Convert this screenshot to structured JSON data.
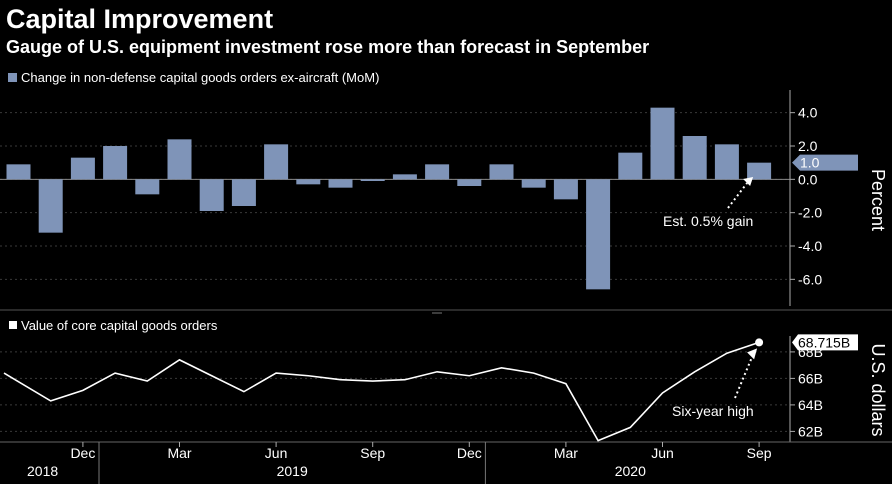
{
  "title": "Capital Improvement",
  "subtitle": "Gauge of U.S. equipment investment rose more than forecast in September",
  "colors": {
    "background": "#000000",
    "bar": "#7f94b8",
    "line": "#ffffff",
    "grid": "#3a3a3a",
    "divider": "#555555"
  },
  "chart_data": [
    {
      "type": "bar",
      "legend": "Change in non-defense capital goods orders ex-aircraft (MoM)",
      "ylabel": "Percent",
      "ylim": [
        -7,
        5
      ],
      "yticks": [
        4.0,
        2.0,
        0.0,
        -2.0,
        -4.0,
        -6.0
      ],
      "ytick_labels": [
        "4.0",
        "2.0",
        "0.0",
        "-2.0",
        "-4.0",
        "-6.0"
      ],
      "categories": [
        "Oct 2018",
        "Nov 2018",
        "Dec 2018",
        "Jan 2019",
        "Feb 2019",
        "Mar 2019",
        "Apr 2019",
        "May 2019",
        "Jun 2019",
        "Jul 2019",
        "Aug 2019",
        "Sep 2019",
        "Oct 2019",
        "Nov 2019",
        "Dec 2019",
        "Jan 2020",
        "Feb 2020",
        "Mar 2020",
        "Apr 2020",
        "May 2020",
        "Jun 2020",
        "Jul 2020",
        "Aug 2020",
        "Sep 2020"
      ],
      "values": [
        0.9,
        -3.2,
        1.3,
        2.0,
        -0.9,
        2.4,
        -1.9,
        -1.6,
        2.1,
        -0.3,
        -0.5,
        -0.1,
        0.3,
        0.9,
        -0.4,
        0.9,
        -0.5,
        -1.2,
        -6.6,
        1.6,
        4.3,
        2.6,
        2.1,
        1.0
      ],
      "last_value_label": "1.0",
      "annotation": "Est. 0.5% gain",
      "annotation_value": 0.5
    },
    {
      "type": "line",
      "legend": "Value of core capital goods orders",
      "ylabel": "U.S. dollars",
      "ylim": [
        61.2,
        69.2
      ],
      "yticks": [
        62,
        64,
        66,
        68
      ],
      "ytick_labels": [
        "62B",
        "64B",
        "66B",
        "68B"
      ],
      "x": [
        "Oct 2018",
        "Nov 2018",
        "Dec 2018",
        "Jan 2019",
        "Feb 2019",
        "Mar 2019",
        "Apr 2019",
        "May 2019",
        "Jun 2019",
        "Jul 2019",
        "Aug 2019",
        "Sep 2019",
        "Oct 2019",
        "Nov 2019",
        "Dec 2019",
        "Jan 2020",
        "Feb 2020",
        "Mar 2020",
        "Apr 2020",
        "May 2020",
        "Jun 2020",
        "Jul 2020",
        "Aug 2020",
        "Sep 2020"
      ],
      "values": [
        66.4,
        64.3,
        65.1,
        66.4,
        65.8,
        67.4,
        66.2,
        65.0,
        66.4,
        66.2,
        65.9,
        65.8,
        65.9,
        66.5,
        66.2,
        66.8,
        66.4,
        65.6,
        61.3,
        62.3,
        64.9,
        66.5,
        67.9,
        68.715
      ],
      "last_value_label": "68.715B",
      "annotation": "Six-year high"
    }
  ],
  "x_axis": {
    "ticks": [
      "Dec",
      "Mar",
      "Jun",
      "Sep",
      "Dec",
      "Mar",
      "Jun",
      "Sep"
    ],
    "years": [
      "2018",
      "2019",
      "2020"
    ]
  }
}
